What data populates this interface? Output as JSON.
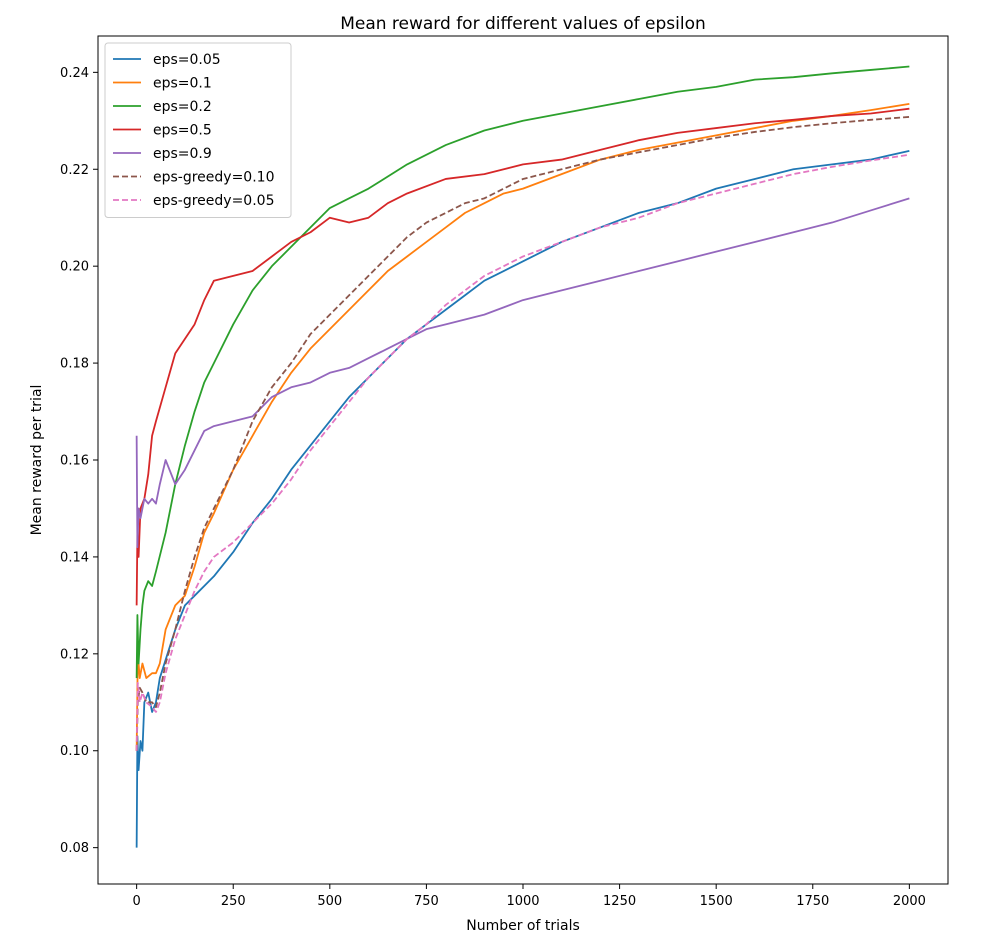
{
  "chart_data": {
    "type": "line",
    "title": "Mean reward for different values of epsilon",
    "xlabel": "Number of trials",
    "ylabel": "Mean reward per trial",
    "xlim": [
      -100,
      2100
    ],
    "ylim": [
      0.0725,
      0.2475
    ],
    "xticks": [
      0,
      250,
      500,
      750,
      1000,
      1250,
      1500,
      1750,
      2000
    ],
    "xtick_labels": [
      "0",
      "250",
      "500",
      "750",
      "1000",
      "1250",
      "1500",
      "1750",
      "2000"
    ],
    "yticks": [
      0.08,
      0.1,
      0.12,
      0.14,
      0.16,
      0.18,
      0.2,
      0.22,
      0.24
    ],
    "ytick_labels": [
      "0.08",
      "0.10",
      "0.12",
      "0.14",
      "0.16",
      "0.18",
      "0.20",
      "0.22",
      "0.24"
    ],
    "grid": false,
    "legend": "top-left",
    "series": [
      {
        "name": "eps=0.05",
        "color": "#1f77b4",
        "dash": "solid",
        "points": [
          [
            0,
            0.08
          ],
          [
            2,
            0.103
          ],
          [
            5,
            0.096
          ],
          [
            10,
            0.102
          ],
          [
            15,
            0.1
          ],
          [
            20,
            0.11
          ],
          [
            30,
            0.112
          ],
          [
            40,
            0.108
          ],
          [
            50,
            0.11
          ],
          [
            60,
            0.115
          ],
          [
            80,
            0.12
          ],
          [
            100,
            0.125
          ],
          [
            125,
            0.13
          ],
          [
            150,
            0.132
          ],
          [
            175,
            0.134
          ],
          [
            200,
            0.136
          ],
          [
            250,
            0.141
          ],
          [
            300,
            0.147
          ],
          [
            350,
            0.152
          ],
          [
            400,
            0.158
          ],
          [
            450,
            0.163
          ],
          [
            500,
            0.168
          ],
          [
            550,
            0.173
          ],
          [
            600,
            0.177
          ],
          [
            650,
            0.181
          ],
          [
            700,
            0.185
          ],
          [
            750,
            0.188
          ],
          [
            800,
            0.191
          ],
          [
            850,
            0.194
          ],
          [
            900,
            0.197
          ],
          [
            950,
            0.199
          ],
          [
            1000,
            0.201
          ],
          [
            1100,
            0.205
          ],
          [
            1200,
            0.208
          ],
          [
            1300,
            0.211
          ],
          [
            1400,
            0.213
          ],
          [
            1500,
            0.216
          ],
          [
            1600,
            0.218
          ],
          [
            1700,
            0.22
          ],
          [
            1800,
            0.221
          ],
          [
            1900,
            0.222
          ],
          [
            2000,
            0.2238
          ]
        ]
      },
      {
        "name": "eps=0.1",
        "color": "#ff7f0e",
        "dash": "solid",
        "points": [
          [
            0,
            0.1
          ],
          [
            3,
            0.12
          ],
          [
            8,
            0.115
          ],
          [
            15,
            0.118
          ],
          [
            25,
            0.115
          ],
          [
            40,
            0.116
          ],
          [
            50,
            0.116
          ],
          [
            60,
            0.118
          ],
          [
            75,
            0.125
          ],
          [
            100,
            0.13
          ],
          [
            125,
            0.132
          ],
          [
            150,
            0.138
          ],
          [
            175,
            0.145
          ],
          [
            200,
            0.149
          ],
          [
            250,
            0.158
          ],
          [
            300,
            0.165
          ],
          [
            350,
            0.172
          ],
          [
            400,
            0.178
          ],
          [
            450,
            0.183
          ],
          [
            500,
            0.187
          ],
          [
            550,
            0.191
          ],
          [
            600,
            0.195
          ],
          [
            650,
            0.199
          ],
          [
            700,
            0.202
          ],
          [
            750,
            0.205
          ],
          [
            800,
            0.208
          ],
          [
            850,
            0.211
          ],
          [
            900,
            0.213
          ],
          [
            950,
            0.215
          ],
          [
            1000,
            0.216
          ],
          [
            1100,
            0.219
          ],
          [
            1200,
            0.222
          ],
          [
            1300,
            0.224
          ],
          [
            1400,
            0.2255
          ],
          [
            1500,
            0.227
          ],
          [
            1600,
            0.2285
          ],
          [
            1700,
            0.23
          ],
          [
            1800,
            0.231
          ],
          [
            1900,
            0.2322
          ],
          [
            2000,
            0.2335
          ]
        ]
      },
      {
        "name": "eps=0.2",
        "color": "#2ca02c",
        "dash": "solid",
        "points": [
          [
            0,
            0.115
          ],
          [
            2,
            0.128
          ],
          [
            5,
            0.118
          ],
          [
            10,
            0.125
          ],
          [
            15,
            0.13
          ],
          [
            20,
            0.133
          ],
          [
            30,
            0.135
          ],
          [
            40,
            0.134
          ],
          [
            50,
            0.137
          ],
          [
            75,
            0.145
          ],
          [
            100,
            0.155
          ],
          [
            125,
            0.163
          ],
          [
            150,
            0.17
          ],
          [
            175,
            0.176
          ],
          [
            200,
            0.18
          ],
          [
            250,
            0.188
          ],
          [
            300,
            0.195
          ],
          [
            350,
            0.2
          ],
          [
            400,
            0.204
          ],
          [
            450,
            0.208
          ],
          [
            500,
            0.212
          ],
          [
            550,
            0.214
          ],
          [
            600,
            0.216
          ],
          [
            700,
            0.221
          ],
          [
            800,
            0.225
          ],
          [
            900,
            0.228
          ],
          [
            1000,
            0.23
          ],
          [
            1100,
            0.2315
          ],
          [
            1200,
            0.233
          ],
          [
            1300,
            0.2345
          ],
          [
            1400,
            0.236
          ],
          [
            1500,
            0.237
          ],
          [
            1600,
            0.2385
          ],
          [
            1700,
            0.239
          ],
          [
            1800,
            0.2398
          ],
          [
            1900,
            0.2405
          ],
          [
            2000,
            0.2412
          ]
        ]
      },
      {
        "name": "eps=0.5",
        "color": "#d62728",
        "dash": "solid",
        "points": [
          [
            0,
            0.13
          ],
          [
            2,
            0.145
          ],
          [
            5,
            0.14
          ],
          [
            10,
            0.15
          ],
          [
            20,
            0.152
          ],
          [
            30,
            0.157
          ],
          [
            40,
            0.165
          ],
          [
            50,
            0.168
          ],
          [
            75,
            0.175
          ],
          [
            100,
            0.182
          ],
          [
            125,
            0.185
          ],
          [
            150,
            0.188
          ],
          [
            175,
            0.193
          ],
          [
            200,
            0.197
          ],
          [
            250,
            0.198
          ],
          [
            300,
            0.199
          ],
          [
            350,
            0.202
          ],
          [
            400,
            0.205
          ],
          [
            450,
            0.207
          ],
          [
            500,
            0.21
          ],
          [
            550,
            0.209
          ],
          [
            600,
            0.21
          ],
          [
            650,
            0.213
          ],
          [
            700,
            0.215
          ],
          [
            800,
            0.218
          ],
          [
            900,
            0.219
          ],
          [
            1000,
            0.221
          ],
          [
            1100,
            0.222
          ],
          [
            1200,
            0.224
          ],
          [
            1300,
            0.226
          ],
          [
            1400,
            0.2275
          ],
          [
            1500,
            0.2285
          ],
          [
            1600,
            0.2295
          ],
          [
            1700,
            0.2302
          ],
          [
            1800,
            0.231
          ],
          [
            1900,
            0.2315
          ],
          [
            2000,
            0.2325
          ]
        ]
      },
      {
        "name": "eps=0.9",
        "color": "#9467bd",
        "dash": "solid",
        "points": [
          [
            0,
            0.165
          ],
          [
            2,
            0.142
          ],
          [
            5,
            0.15
          ],
          [
            10,
            0.148
          ],
          [
            20,
            0.152
          ],
          [
            30,
            0.151
          ],
          [
            40,
            0.152
          ],
          [
            50,
            0.151
          ],
          [
            60,
            0.155
          ],
          [
            75,
            0.16
          ],
          [
            100,
            0.155
          ],
          [
            125,
            0.158
          ],
          [
            150,
            0.162
          ],
          [
            175,
            0.166
          ],
          [
            200,
            0.167
          ],
          [
            250,
            0.168
          ],
          [
            300,
            0.169
          ],
          [
            350,
            0.173
          ],
          [
            400,
            0.175
          ],
          [
            450,
            0.176
          ],
          [
            500,
            0.178
          ],
          [
            550,
            0.179
          ],
          [
            600,
            0.181
          ],
          [
            650,
            0.183
          ],
          [
            700,
            0.185
          ],
          [
            750,
            0.187
          ],
          [
            800,
            0.188
          ],
          [
            850,
            0.189
          ],
          [
            900,
            0.19
          ],
          [
            1000,
            0.193
          ],
          [
            1100,
            0.195
          ],
          [
            1200,
            0.197
          ],
          [
            1300,
            0.199
          ],
          [
            1400,
            0.201
          ],
          [
            1500,
            0.203
          ],
          [
            1600,
            0.205
          ],
          [
            1700,
            0.207
          ],
          [
            1800,
            0.209
          ],
          [
            1900,
            0.2115
          ],
          [
            2000,
            0.214
          ]
        ]
      },
      {
        "name": "eps-greedy=0.10",
        "color": "#8c564b",
        "dash": "dashed",
        "points": [
          [
            0,
            0.1
          ],
          [
            3,
            0.11
          ],
          [
            8,
            0.113
          ],
          [
            15,
            0.112
          ],
          [
            25,
            0.11
          ],
          [
            40,
            0.11
          ],
          [
            50,
            0.109
          ],
          [
            60,
            0.112
          ],
          [
            75,
            0.118
          ],
          [
            100,
            0.125
          ],
          [
            125,
            0.133
          ],
          [
            150,
            0.14
          ],
          [
            175,
            0.146
          ],
          [
            200,
            0.15
          ],
          [
            250,
            0.158
          ],
          [
            300,
            0.168
          ],
          [
            350,
            0.175
          ],
          [
            400,
            0.18
          ],
          [
            450,
            0.186
          ],
          [
            500,
            0.19
          ],
          [
            550,
            0.194
          ],
          [
            600,
            0.198
          ],
          [
            650,
            0.202
          ],
          [
            700,
            0.206
          ],
          [
            750,
            0.209
          ],
          [
            800,
            0.211
          ],
          [
            850,
            0.213
          ],
          [
            900,
            0.214
          ],
          [
            950,
            0.216
          ],
          [
            1000,
            0.218
          ],
          [
            1100,
            0.22
          ],
          [
            1200,
            0.222
          ],
          [
            1300,
            0.2235
          ],
          [
            1400,
            0.225
          ],
          [
            1500,
            0.2265
          ],
          [
            1600,
            0.2277
          ],
          [
            1700,
            0.2287
          ],
          [
            1800,
            0.2295
          ],
          [
            1900,
            0.2302
          ],
          [
            2000,
            0.2308
          ]
        ]
      },
      {
        "name": "eps-greedy=0.05",
        "color": "#e377c2",
        "dash": "dashed",
        "points": [
          [
            0,
            0.1
          ],
          [
            3,
            0.114
          ],
          [
            8,
            0.11
          ],
          [
            15,
            0.112
          ],
          [
            25,
            0.11
          ],
          [
            40,
            0.109
          ],
          [
            50,
            0.108
          ],
          [
            60,
            0.11
          ],
          [
            75,
            0.116
          ],
          [
            100,
            0.123
          ],
          [
            125,
            0.128
          ],
          [
            150,
            0.133
          ],
          [
            175,
            0.137
          ],
          [
            200,
            0.14
          ],
          [
            250,
            0.143
          ],
          [
            300,
            0.147
          ],
          [
            350,
            0.151
          ],
          [
            400,
            0.156
          ],
          [
            450,
            0.162
          ],
          [
            500,
            0.167
          ],
          [
            550,
            0.172
          ],
          [
            600,
            0.177
          ],
          [
            650,
            0.181
          ],
          [
            700,
            0.185
          ],
          [
            750,
            0.188
          ],
          [
            800,
            0.192
          ],
          [
            850,
            0.195
          ],
          [
            900,
            0.198
          ],
          [
            950,
            0.2
          ],
          [
            1000,
            0.202
          ],
          [
            1100,
            0.205
          ],
          [
            1200,
            0.208
          ],
          [
            1300,
            0.21
          ],
          [
            1400,
            0.213
          ],
          [
            1500,
            0.215
          ],
          [
            1600,
            0.217
          ],
          [
            1700,
            0.219
          ],
          [
            1800,
            0.2205
          ],
          [
            1900,
            0.2218
          ],
          [
            2000,
            0.223
          ]
        ]
      }
    ]
  }
}
